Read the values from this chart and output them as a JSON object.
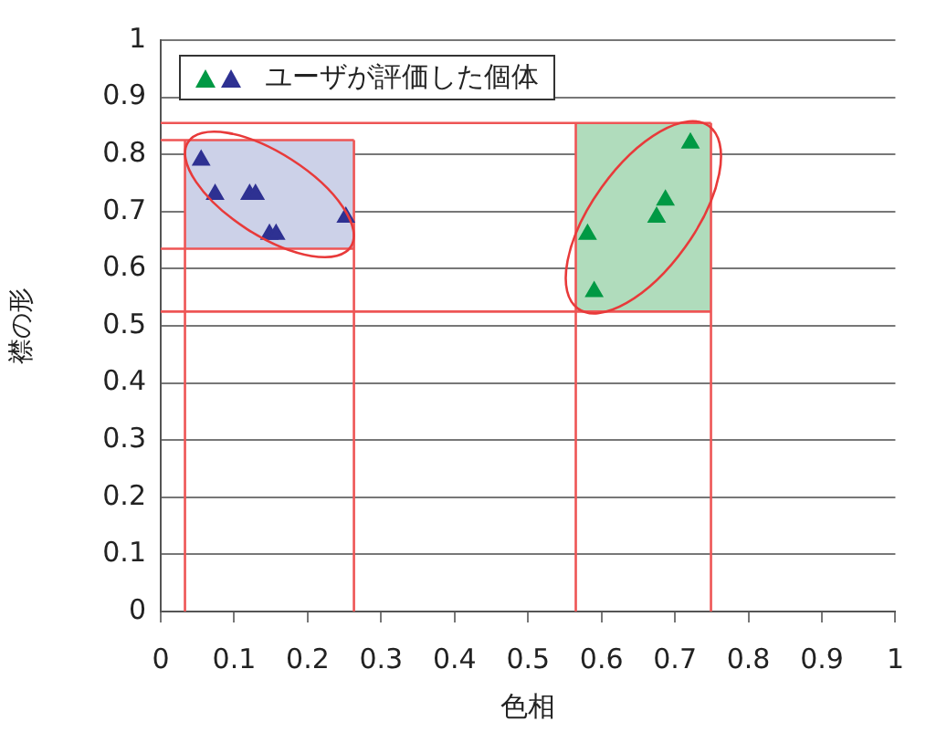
{
  "chart_data": {
    "type": "scatter",
    "xlabel": "色相",
    "ylabel": "襟の形",
    "xlim": [
      0,
      1
    ],
    "xticks": [
      0,
      0.1,
      0.2,
      0.3,
      0.4,
      0.5,
      0.6,
      0.7,
      0.8,
      0.9,
      1
    ],
    "ylim": [
      0,
      1
    ],
    "yticks": [
      0,
      0.1,
      0.2,
      0.3,
      0.4,
      0.5,
      0.6,
      0.7,
      0.8,
      0.9,
      1
    ],
    "grid": "y",
    "legend": "top left",
    "marker": "triangle",
    "bands": [
      {
        "axis": "x",
        "from": 0.033,
        "to": 0.263,
        "color": "#ccd1e8"
      },
      {
        "axis": "x",
        "from": 0.565,
        "to": 0.749,
        "color": "#b0dcbc"
      }
    ],
    "ref_lines": [
      {
        "axis": "x",
        "value": 0.033,
        "color": "#ee5555"
      },
      {
        "axis": "x",
        "value": 0.263,
        "color": "#ee5555"
      },
      {
        "axis": "x",
        "value": 0.565,
        "color": "#ee5555"
      },
      {
        "axis": "x",
        "value": 0.749,
        "color": "#ee5555"
      },
      {
        "axis": "y",
        "value": 0.635,
        "color": "#ee5555"
      },
      {
        "axis": "y",
        "value": 0.825,
        "color": "#ee5555"
      },
      {
        "axis": "y",
        "value": 0.525,
        "color": "#ee5555"
      },
      {
        "axis": "y",
        "value": 0.855,
        "color": "#ee5555"
      }
    ],
    "series": [
      {
        "color": "#009944",
        "x": [
          0.581,
          0.59,
          0.675,
          0.687,
          0.721
        ],
        "values": [
          0.66,
          0.56,
          0.69,
          0.72,
          0.82
        ]
      },
      {
        "name": "ユーザが評価した個体",
        "color": "#2e3192",
        "x": [
          0.055,
          0.074,
          0.121,
          0.129,
          0.148,
          0.157,
          0.252
        ],
        "values": [
          0.79,
          0.73,
          0.73,
          0.73,
          0.66,
          0.66,
          0.69
        ]
      }
    ]
  }
}
